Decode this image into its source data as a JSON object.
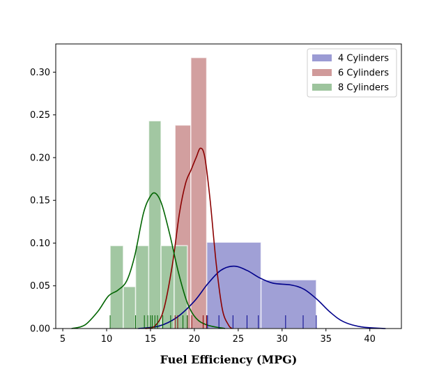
{
  "chart_data": {
    "type": "histogram",
    "title": "",
    "xlabel": "Fuel Efficiency (MPG)",
    "ylabel": "",
    "xlim": [
      4.2,
      43.6
    ],
    "ylim": [
      0,
      0.333
    ],
    "xticks": [
      5,
      10,
      15,
      20,
      25,
      30,
      35,
      40
    ],
    "yticks": [
      0.0,
      0.05,
      0.1,
      0.15,
      0.2,
      0.25,
      0.3
    ],
    "ytick_labels": [
      "0.00",
      "0.05",
      "0.10",
      "0.15",
      "0.20",
      "0.25",
      "0.30"
    ],
    "legend_position": "top-right",
    "series": [
      {
        "name": "4 Cylinders",
        "fill_color": "#9b9bd4",
        "line_color": "#00008b",
        "bins": [
          {
            "x0": 21.4,
            "x1": 27.6,
            "density": 0.101
          },
          {
            "x0": 27.6,
            "x1": 33.9,
            "density": 0.057
          }
        ],
        "rug": [
          21.4,
          21.5,
          22.8,
          24.4,
          26.0,
          27.3,
          30.4,
          32.4,
          33.9
        ],
        "kde": [
          [
            13.6,
            0.0
          ],
          [
            16,
            0.003
          ],
          [
            18,
            0.013
          ],
          [
            20,
            0.032
          ],
          [
            21.5,
            0.052
          ],
          [
            23,
            0.068
          ],
          [
            24.5,
            0.073
          ],
          [
            26,
            0.068
          ],
          [
            27.5,
            0.059
          ],
          [
            29,
            0.053
          ],
          [
            31,
            0.051
          ],
          [
            32.5,
            0.046
          ],
          [
            34,
            0.034
          ],
          [
            35.5,
            0.019
          ],
          [
            37,
            0.008
          ],
          [
            39,
            0.002
          ],
          [
            41.8,
            0.0
          ]
        ]
      },
      {
        "name": "6 Cylinders",
        "fill_color": "#d09a9a",
        "line_color": "#8b0000",
        "bins": [
          {
            "x0": 17.8,
            "x1": 19.6,
            "density": 0.238
          },
          {
            "x0": 19.6,
            "x1": 21.4,
            "density": 0.317
          }
        ],
        "rug": [
          17.8,
          18.1,
          19.2,
          19.7,
          21.0,
          21.4
        ],
        "kde": [
          [
            14.4,
            0.0
          ],
          [
            15.5,
            0.003
          ],
          [
            16.5,
            0.022
          ],
          [
            17.5,
            0.075
          ],
          [
            18.3,
            0.135
          ],
          [
            19.0,
            0.17
          ],
          [
            19.6,
            0.185
          ],
          [
            20.2,
            0.2
          ],
          [
            20.7,
            0.211
          ],
          [
            21.2,
            0.2
          ],
          [
            21.8,
            0.15
          ],
          [
            22.5,
            0.075
          ],
          [
            23.2,
            0.022
          ],
          [
            23.9,
            0.004
          ],
          [
            24.3,
            0.0
          ]
        ]
      },
      {
        "name": "8 Cylinders",
        "fill_color": "#9dc49d",
        "line_color": "#006400",
        "bins": [
          {
            "x0": 10.4,
            "x1": 11.9,
            "density": 0.097
          },
          {
            "x0": 11.9,
            "x1": 13.3,
            "density": 0.049
          },
          {
            "x0": 13.3,
            "x1": 14.8,
            "density": 0.097
          },
          {
            "x0": 14.8,
            "x1": 16.2,
            "density": 0.243
          },
          {
            "x0": 16.2,
            "x1": 17.7,
            "density": 0.097
          },
          {
            "x0": 17.7,
            "x1": 19.2,
            "density": 0.097
          }
        ],
        "rug": [
          10.4,
          13.3,
          14.3,
          14.7,
          15.0,
          15.2,
          15.5,
          15.8,
          16.4,
          17.3,
          18.7,
          19.2
        ],
        "kde": [
          [
            6.0,
            0.0
          ],
          [
            7.5,
            0.004
          ],
          [
            9.0,
            0.02
          ],
          [
            10.2,
            0.038
          ],
          [
            11.3,
            0.045
          ],
          [
            12.3,
            0.056
          ],
          [
            13.2,
            0.085
          ],
          [
            14.2,
            0.135
          ],
          [
            15.0,
            0.155
          ],
          [
            15.6,
            0.158
          ],
          [
            16.3,
            0.145
          ],
          [
            17.2,
            0.11
          ],
          [
            18.2,
            0.065
          ],
          [
            19.2,
            0.03
          ],
          [
            20.2,
            0.012
          ],
          [
            21.5,
            0.004
          ],
          [
            23.5,
            0.0
          ]
        ]
      }
    ]
  }
}
